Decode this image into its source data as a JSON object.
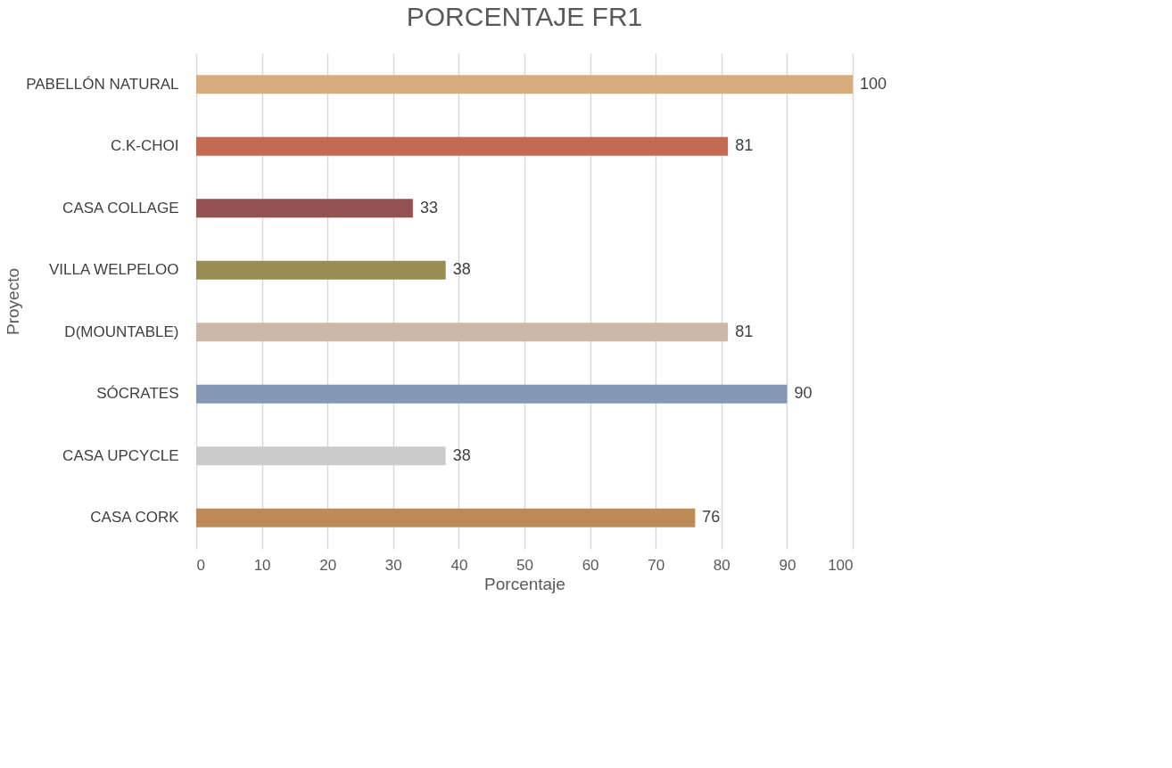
{
  "chart_data": {
    "type": "bar",
    "orientation": "horizontal",
    "title": "PORCENTAJE FR1",
    "xlabel": "Porcentaje",
    "ylabel": "Proyecto",
    "categories": [
      "PABELLÓN NATURAL",
      "C.K-CHOI",
      "CASA COLLAGE",
      "VILLA WELPELOO",
      "D(MOUNTABLE)",
      "SÓCRATES",
      "CASA UPCYCLE",
      "CASA CORK"
    ],
    "values": [
      100,
      81,
      33,
      38,
      81,
      90,
      38,
      76
    ],
    "colors": [
      "#d7ad7c",
      "#c46a53",
      "#955252",
      "#978d54",
      "#cbb8a8",
      "#8398b2",
      "#cbcbcb",
      "#bd8b57"
    ],
    "xlim": [
      0,
      100
    ],
    "xticks": [
      0,
      10,
      20,
      30,
      40,
      50,
      60,
      70,
      80,
      90,
      100
    ],
    "grid": "x",
    "data_labels": true
  }
}
